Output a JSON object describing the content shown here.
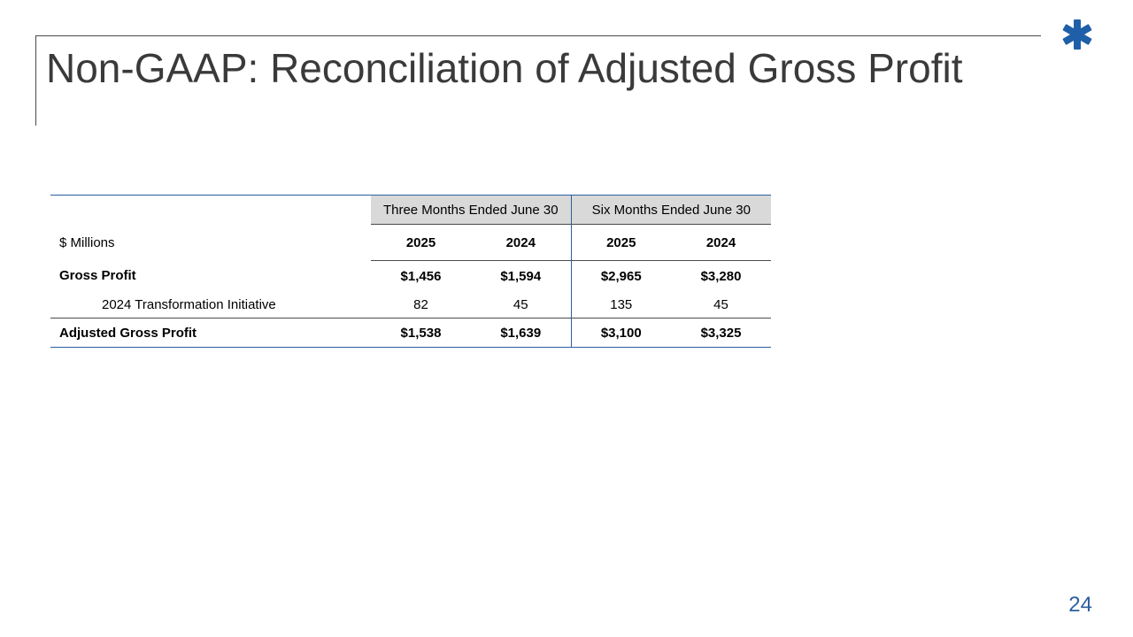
{
  "slide": {
    "title": "Non-GAAP: Reconciliation of Adjusted Gross Profit",
    "page_number": "24",
    "logo_icon": "asterisk-logo-icon",
    "accent_color": "#2c5f9e"
  },
  "table": {
    "units_label": "$ Millions",
    "periods": [
      {
        "label": "Three Months Ended June 30",
        "years": [
          "2025",
          "2024"
        ]
      },
      {
        "label": "Six Months Ended June 30",
        "years": [
          "2025",
          "2024"
        ]
      }
    ],
    "rows": [
      {
        "label": "Gross Profit",
        "values": [
          "$1,456",
          "$1,594",
          "$2,965",
          "$3,280"
        ],
        "bold": true
      },
      {
        "label": "2024 Transformation Initiative",
        "values": [
          "82",
          "45",
          "135",
          "45"
        ],
        "bold": false
      },
      {
        "label": "Adjusted Gross Profit",
        "values": [
          "$1,538",
          "$1,639",
          "$3,100",
          "$3,325"
        ],
        "bold": true
      }
    ]
  }
}
